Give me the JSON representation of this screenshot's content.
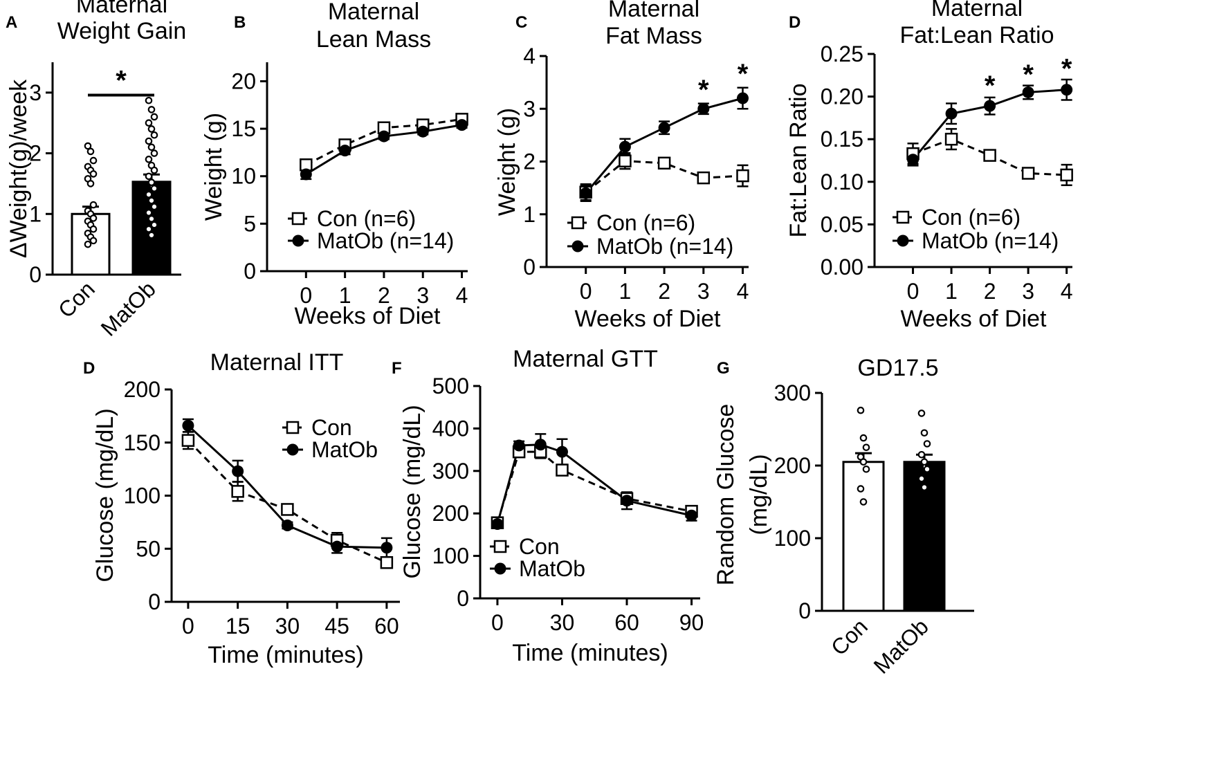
{
  "figure": {
    "background": "#ffffff",
    "ink": "#000000"
  },
  "chart_data": [
    {
      "id": "A",
      "panel_letter": "A",
      "type": "bar",
      "title": [
        "Maternal",
        "Weight Gain"
      ],
      "xlabel": "",
      "ylabel": "ΔWeight(g)/week",
      "ylim": [
        0,
        3.5
      ],
      "yticks": [
        0,
        1,
        2,
        3
      ],
      "ytick_labels": [
        "0",
        "1",
        "2",
        "3"
      ],
      "categories": [
        "Con",
        "MatOb"
      ],
      "bars": [
        {
          "name": "Con",
          "value": 1.0,
          "sem": 0.12,
          "fill": "#ffffff",
          "points": [
            2.12,
            2.03,
            1.88,
            1.78,
            1.72,
            1.66,
            1.58,
            1.5,
            1.15,
            1.05,
            1.0,
            0.93,
            0.88,
            0.82,
            0.75,
            0.68,
            0.62,
            0.56,
            0.5
          ]
        },
        {
          "name": "MatOb",
          "value": 1.53,
          "sem": 0.12,
          "fill": "#000000",
          "points": [
            2.87,
            2.72,
            2.6,
            2.5,
            2.4,
            2.3,
            2.2,
            2.1,
            2.0,
            1.9,
            1.8,
            1.72,
            1.62,
            1.52,
            1.42,
            1.32,
            1.22,
            1.12,
            1.02,
            0.92,
            0.82,
            0.75,
            0.65
          ]
        }
      ],
      "significance": {
        "label": "*",
        "between": [
          "Con",
          "MatOb"
        ],
        "y": 3.3
      }
    },
    {
      "id": "B",
      "panel_letter": "B",
      "type": "line",
      "title": [
        "Maternal",
        "Lean Mass"
      ],
      "xlabel": "Weeks of Diet",
      "ylabel": "Weight (g)",
      "xlim": [
        -1,
        4.15
      ],
      "xticks": [
        0,
        1,
        2,
        3,
        4
      ],
      "ylim": [
        0,
        22
      ],
      "yticks": [
        0,
        5,
        10,
        15,
        20
      ],
      "x": [
        0,
        1,
        2,
        3,
        4
      ],
      "series": [
        {
          "name": "Con",
          "legend": "Con (n=6)",
          "marker": "square-open",
          "line": "dashed",
          "values": [
            11.2,
            13.3,
            15.1,
            15.4,
            16.0
          ],
          "errors": [
            0.4,
            0.4,
            0.4,
            0.4,
            0.3
          ]
        },
        {
          "name": "MatOb",
          "legend": "MatOb (n=14)",
          "marker": "circle-filled",
          "line": "solid",
          "values": [
            10.2,
            12.7,
            14.2,
            14.7,
            15.4
          ],
          "errors": [
            0.5,
            0.4,
            0.3,
            0.3,
            0.3
          ]
        }
      ],
      "legend_position": "bottom-left",
      "significance": []
    },
    {
      "id": "C",
      "panel_letter": "C",
      "type": "line",
      "title": [
        "Maternal",
        "Fat Mass"
      ],
      "xlabel": "Weeks of Diet",
      "ylabel": "Weight (g)",
      "xlim": [
        -1,
        4.15
      ],
      "xticks": [
        0,
        1,
        2,
        3,
        4
      ],
      "ylim": [
        0,
        4
      ],
      "yticks": [
        0,
        1,
        2,
        3,
        4
      ],
      "x": [
        0,
        1,
        2,
        3,
        4
      ],
      "series": [
        {
          "name": "Con",
          "legend": "Con (n=6)",
          "marker": "square-open",
          "line": "dashed",
          "values": [
            1.42,
            2.01,
            1.97,
            1.69,
            1.73
          ],
          "errors": [
            0.15,
            0.15,
            0.05,
            0.05,
            0.2
          ]
        },
        {
          "name": "MatOb",
          "legend": "MatOb (n=14)",
          "marker": "circle-filled",
          "line": "solid",
          "values": [
            1.4,
            2.28,
            2.64,
            3.0,
            3.2
          ],
          "errors": [
            0.15,
            0.15,
            0.12,
            0.1,
            0.2
          ]
        }
      ],
      "legend_position": "bottom-left",
      "significance": [
        {
          "label": "*",
          "x": 3,
          "y": 3.4
        },
        {
          "label": "*",
          "x": 4,
          "y": 3.7
        }
      ]
    },
    {
      "id": "D1",
      "panel_letter": "D",
      "type": "line",
      "title": [
        "Maternal",
        "Fat:Lean Ratio"
      ],
      "xlabel": "Weeks of Diet",
      "ylabel": "Fat:Lean  Ratio",
      "xlim": [
        -1,
        4.15
      ],
      "xticks": [
        0,
        1,
        2,
        3,
        4
      ],
      "ylim": [
        0,
        0.25
      ],
      "yticks": [
        0,
        0.05,
        0.1,
        0.15,
        0.2,
        0.25
      ],
      "ytick_labels": [
        "0.00",
        "0.05",
        "0.10",
        "0.15",
        "0.20",
        "0.25"
      ],
      "x": [
        0,
        1,
        2,
        3,
        4
      ],
      "series": [
        {
          "name": "Con",
          "legend": "Con (n=6)",
          "marker": "square-open",
          "line": "dashed",
          "values": [
            0.133,
            0.15,
            0.131,
            0.11,
            0.108
          ],
          "errors": [
            0.012,
            0.012,
            0.006,
            0.004,
            0.012
          ]
        },
        {
          "name": "MatOb",
          "legend": "MatOb (n=14)",
          "marker": "circle-filled",
          "line": "solid",
          "values": [
            0.126,
            0.18,
            0.189,
            0.205,
            0.208
          ],
          "errors": [
            0.007,
            0.012,
            0.01,
            0.008,
            0.012
          ]
        }
      ],
      "legend_position": "bottom-left",
      "significance": [
        {
          "label": "*",
          "x": 2,
          "y": 0.215
        },
        {
          "label": "*",
          "x": 3,
          "y": 0.228
        },
        {
          "label": "*",
          "x": 4,
          "y": 0.235
        }
      ]
    },
    {
      "id": "D2",
      "panel_letter": "D",
      "type": "line",
      "title": [
        "Maternal  ITT"
      ],
      "xlabel": "Time (minutes)",
      "ylabel": "Glucose (mg/dL)",
      "xlim": [
        -5,
        64
      ],
      "xticks": [
        0,
        15,
        30,
        45,
        60
      ],
      "ylim": [
        0,
        200
      ],
      "yticks": [
        0,
        50,
        100,
        150,
        200
      ],
      "x": [
        0,
        15,
        30,
        45,
        60
      ],
      "series": [
        {
          "name": "Con",
          "legend": "Con",
          "marker": "square-open",
          "line": "dashed",
          "values": [
            152,
            104,
            87,
            58,
            37
          ],
          "errors": [
            8,
            9,
            5,
            7,
            5
          ]
        },
        {
          "name": "MatOb",
          "legend": "MatOb",
          "marker": "circle-filled",
          "line": "solid",
          "values": [
            166,
            123,
            72,
            52,
            51
          ],
          "errors": [
            6,
            10,
            3,
            6,
            9
          ]
        }
      ],
      "legend_position": "top-right",
      "significance": []
    },
    {
      "id": "F",
      "panel_letter": "F",
      "type": "line",
      "title": [
        "Maternal  GTT"
      ],
      "xlabel": "Time (minutes)",
      "ylabel": "Glucose (mg/dL)",
      "xlim": [
        -8,
        94
      ],
      "xticks": [
        0,
        30,
        60,
        90
      ],
      "ylim": [
        0,
        500
      ],
      "yticks": [
        0,
        100,
        200,
        300,
        400,
        500
      ],
      "x": [
        0,
        10,
        20,
        30,
        60,
        90
      ],
      "series": [
        {
          "name": "Con",
          "legend": "Con",
          "marker": "square-open",
          "line": "dashed",
          "values": [
            178,
            345,
            345,
            302,
            235,
            205
          ],
          "errors": [
            8,
            12,
            15,
            12,
            12,
            8
          ]
        },
        {
          "name": "MatOb",
          "legend": "MatOb",
          "marker": "circle-filled",
          "line": "solid",
          "values": [
            175,
            360,
            362,
            345,
            230,
            195
          ],
          "errors": [
            8,
            10,
            25,
            30,
            20,
            12
          ]
        }
      ],
      "legend_position": "bottom-left",
      "significance": []
    },
    {
      "id": "G",
      "panel_letter": "G",
      "type": "bar",
      "title": [
        "GD17.5"
      ],
      "xlabel": "",
      "ylabel": [
        "Random Glucose",
        "(mg/dL)"
      ],
      "ylim": [
        0,
        300
      ],
      "yticks": [
        0,
        100,
        200,
        300
      ],
      "ytick_labels": [
        "0",
        "100",
        "200",
        "300"
      ],
      "categories": [
        "Con",
        "MatOb"
      ],
      "bars": [
        {
          "name": "Con",
          "value": 205,
          "sem": 12,
          "fill": "#ffffff",
          "points": [
            276,
            238,
            225,
            212,
            205,
            195,
            168,
            150
          ]
        },
        {
          "name": "MatOb",
          "value": 205,
          "sem": 10,
          "fill": "#000000",
          "points": [
            272,
            245,
            230,
            215,
            205,
            195,
            182,
            170
          ]
        }
      ],
      "significance": null
    }
  ]
}
